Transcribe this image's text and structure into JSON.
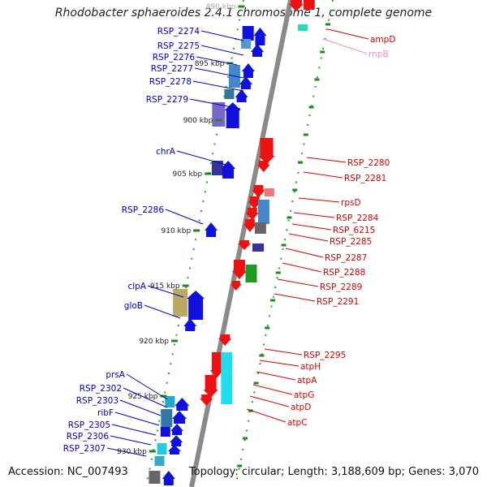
{
  "title": "Rhodobacter sphaeroides 2.4.1 chromosome 1, complete genome",
  "footer": {
    "accession": "Accession: NC_007493",
    "topology": "Topology: circular; Length: 3,188,609 bp; Genes: 3,070"
  },
  "colors": {
    "left_label": "#0000cc",
    "right_label": "#dd0000",
    "rnpB_label": "#ff88bb",
    "backbone": "#888888",
    "tick": "#228822"
  },
  "kbp_ticks": [
    "890 kbp",
    "895 kbp",
    "900 kbp",
    "905 kbp",
    "910 kbp",
    "915 kbp",
    "920 kbp",
    "925 kbp",
    "930 kbp"
  ],
  "left_labels": [
    "RSP_2274",
    "RSP_2275",
    "RSP_2276",
    "RSP_2277",
    "RSP_2278",
    "RSP_2279",
    "chrA",
    "RSP_2286",
    "clpA",
    "gloB",
    "prsA",
    "RSP_2302",
    "RSP_2303",
    "ribF",
    "RSP_2305",
    "RSP_2306",
    "RSP_2307"
  ],
  "right_labels": [
    "ampD",
    "rnpB",
    "RSP_2280",
    "RSP_2281",
    "rpsD",
    "RSP_2284",
    "RSP_6215",
    "RSP_2285",
    "RSP_2287",
    "RSP_2288",
    "RSP_2289",
    "RSP_2291",
    "RSP_2295",
    "atpH",
    "atpA",
    "atpG",
    "atpD",
    "atpC"
  ]
}
